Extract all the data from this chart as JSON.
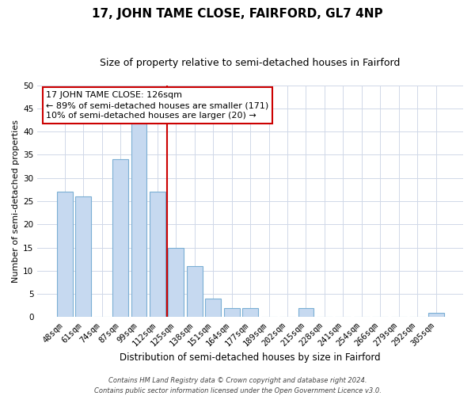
{
  "title": "17, JOHN TAME CLOSE, FAIRFORD, GL7 4NP",
  "subtitle": "Size of property relative to semi-detached houses in Fairford",
  "xlabel": "Distribution of semi-detached houses by size in Fairford",
  "ylabel": "Number of semi-detached properties",
  "bar_labels": [
    "48sqm",
    "61sqm",
    "74sqm",
    "87sqm",
    "99sqm",
    "112sqm",
    "125sqm",
    "138sqm",
    "151sqm",
    "164sqm",
    "177sqm",
    "189sqm",
    "202sqm",
    "215sqm",
    "228sqm",
    "241sqm",
    "254sqm",
    "266sqm",
    "279sqm",
    "292sqm",
    "305sqm"
  ],
  "bar_values": [
    27,
    26,
    0,
    34,
    42,
    27,
    15,
    11,
    4,
    2,
    2,
    0,
    0,
    2,
    0,
    0,
    0,
    0,
    0,
    0,
    1
  ],
  "bar_color": "#c6d9f0",
  "bar_edge_color": "#7bafd4",
  "vline_x_index": 6,
  "vline_color": "#cc0000",
  "ylim_max": 50,
  "yticks": [
    0,
    5,
    10,
    15,
    20,
    25,
    30,
    35,
    40,
    45,
    50
  ],
  "annotation_title": "17 JOHN TAME CLOSE: 126sqm",
  "annotation_line1": "← 89% of semi-detached houses are smaller (171)",
  "annotation_line2": "10% of semi-detached houses are larger (20) →",
  "annotation_box_color": "#ffffff",
  "annotation_box_edge": "#cc0000",
  "footer_line1": "Contains HM Land Registry data © Crown copyright and database right 2024.",
  "footer_line2": "Contains public sector information licensed under the Open Government Licence v3.0.",
  "bg_color": "#ffffff",
  "grid_color": "#d0d8e8",
  "title_fontsize": 11,
  "subtitle_fontsize": 9,
  "xlabel_fontsize": 8.5,
  "ylabel_fontsize": 8,
  "tick_fontsize": 7.5,
  "annotation_fontsize": 8,
  "footer_fontsize": 6
}
